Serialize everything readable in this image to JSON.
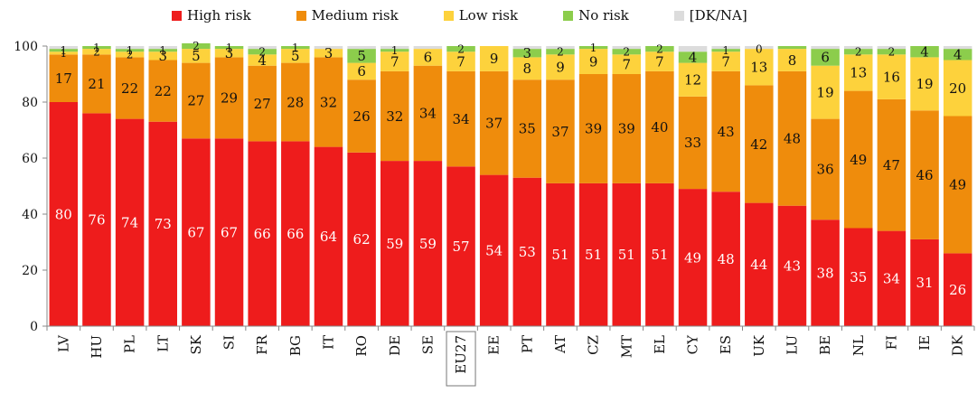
{
  "chart_data": {
    "type": "bar",
    "stacked": true,
    "orientation": "vertical",
    "title": "",
    "xlabel": "",
    "ylabel": "",
    "ylim": [
      0,
      100
    ],
    "yticks": [
      0,
      20,
      40,
      60,
      80,
      100
    ],
    "grid": false,
    "legend_position": "top",
    "highlighted_category": "EU27",
    "categories": [
      "LV",
      "HU",
      "PL",
      "LT",
      "SK",
      "SI",
      "FR",
      "BG",
      "IT",
      "RO",
      "DE",
      "SE",
      "EU27",
      "EE",
      "PT",
      "AT",
      "CZ",
      "MT",
      "EL",
      "CY",
      "ES",
      "UK",
      "LU",
      "BE",
      "NL",
      "FI",
      "IE",
      "DK"
    ],
    "series": [
      {
        "name": "High risk",
        "color": "#ee1c1c",
        "label_color": "#ffffff",
        "values": [
          80,
          76,
          74,
          73,
          67,
          67,
          66,
          66,
          64,
          62,
          59,
          59,
          57,
          54,
          53,
          51,
          51,
          51,
          51,
          49,
          48,
          44,
          43,
          38,
          35,
          34,
          31,
          26
        ]
      },
      {
        "name": "Medium risk",
        "color": "#ef8c0c",
        "label_color": "#111111",
        "values": [
          17,
          21,
          22,
          22,
          27,
          29,
          27,
          28,
          32,
          26,
          32,
          34,
          34,
          37,
          35,
          37,
          39,
          39,
          40,
          33,
          43,
          42,
          48,
          36,
          49,
          47,
          46,
          49
        ]
      },
      {
        "name": "Low risk",
        "color": "#fdd23c",
        "label_color": "#111111",
        "values": [
          1,
          2,
          2,
          3,
          5,
          3,
          4,
          5,
          3,
          6,
          7,
          6,
          7,
          9,
          8,
          9,
          9,
          7,
          7,
          12,
          7,
          13,
          8,
          19,
          13,
          16,
          19,
          20
        ]
      },
      {
        "name": "No risk",
        "color": "#8ccd4c",
        "label_color": "#111111",
        "values": [
          1,
          1,
          1,
          1,
          2,
          1,
          2,
          1,
          0,
          5,
          1,
          0,
          2,
          0,
          3,
          2,
          1,
          2,
          2,
          4,
          1,
          0,
          1,
          6,
          2,
          2,
          4,
          4
        ]
      },
      {
        "name": "[DK/NA]",
        "color": "#dcdcdc",
        "label_color": "#111111",
        "values": [
          1,
          0,
          1,
          1,
          0,
          0,
          1,
          0,
          1,
          1,
          1,
          1,
          0,
          0,
          1,
          1,
          0,
          1,
          0,
          2,
          1,
          1,
          0,
          1,
          1,
          1,
          0,
          1
        ]
      }
    ],
    "labels": {
      "High risk": [
        "80",
        "76",
        "74",
        "73",
        "67",
        "67",
        "66",
        "66",
        "64",
        "62",
        "59",
        "59",
        "57",
        "54",
        "53",
        "51",
        "51",
        "51",
        "51",
        "49",
        "48",
        "44",
        "43",
        "38",
        "35",
        "34",
        "31",
        "26"
      ],
      "Medium risk": [
        "17",
        "21",
        "22",
        "22",
        "27",
        "29",
        "27",
        "28",
        "32",
        "26",
        "32",
        "34",
        "34",
        "37",
        "35",
        "37",
        "39",
        "39",
        "40",
        "33",
        "43",
        "42",
        "48",
        "36",
        "49",
        "47",
        "46",
        "49"
      ],
      "Low risk": [
        "1",
        "2",
        "2",
        "3",
        "5",
        "3",
        "4",
        "5",
        "3",
        "6",
        "7",
        "6",
        "7",
        "9",
        "8",
        "9",
        "9",
        "7",
        "7",
        "12",
        "7",
        "13",
        "8",
        "19",
        "13",
        "16",
        "19",
        "20"
      ],
      "No risk": [
        "1",
        "1",
        "1",
        "1",
        "2",
        "1",
        "2",
        "1",
        "",
        "5",
        "1",
        "",
        "2",
        "",
        "3",
        "2",
        "1",
        "2",
        "2",
        "4",
        "1",
        "0",
        "",
        "6",
        "2",
        "2",
        "4",
        "4"
      ]
    }
  }
}
